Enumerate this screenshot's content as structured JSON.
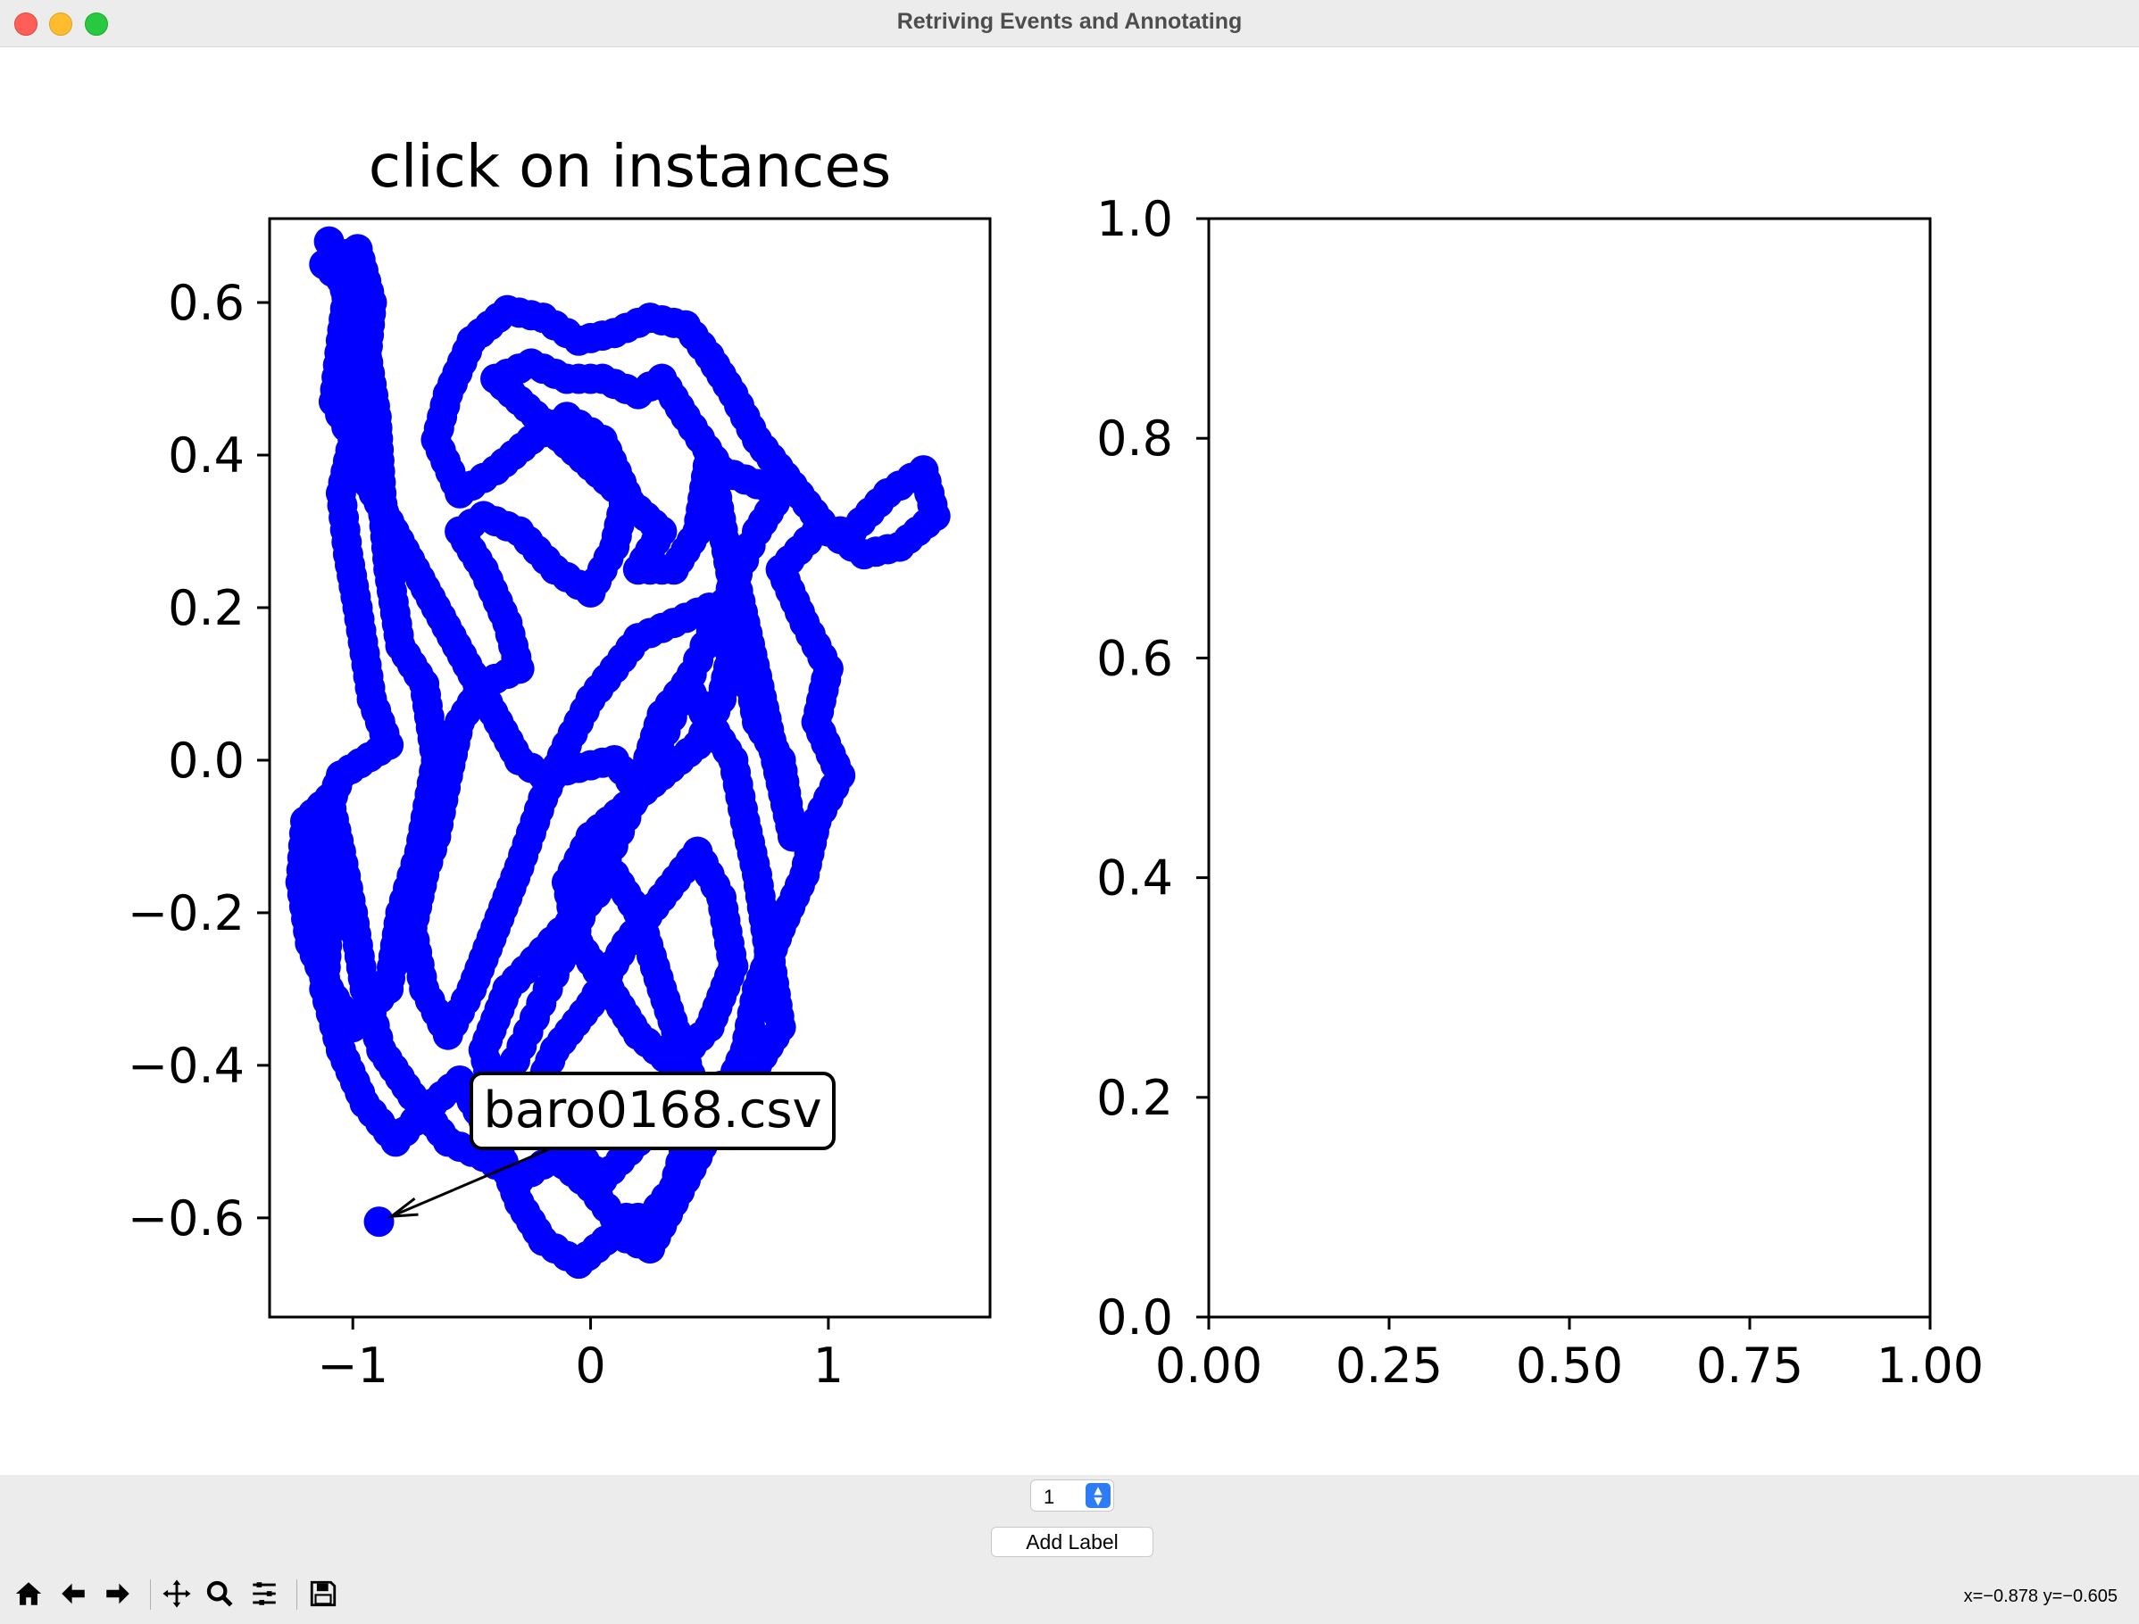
{
  "window": {
    "title": "Retriving Events and Annotating"
  },
  "chart_data": [
    {
      "type": "scatter",
      "title": "click on instances",
      "xlim": [
        -1.35,
        1.68
      ],
      "ylim": [
        -0.73,
        0.71
      ],
      "xticks": [
        "−1",
        "0",
        "1"
      ],
      "xtick_values": [
        -1,
        0,
        1
      ],
      "yticks": [
        "−0.6",
        "−0.4",
        "−0.2",
        "0.0",
        "0.2",
        "0.4",
        "0.6"
      ],
      "ytick_values": [
        -0.6,
        -0.4,
        -0.2,
        0.0,
        0.2,
        0.4,
        0.6
      ],
      "marker_color": "#0000ff",
      "trajectory": [
        [
          -1.1,
          0.68
        ],
        [
          -1.02,
          0.62
        ],
        [
          -1.05,
          0.55
        ],
        [
          -1.08,
          0.47
        ],
        [
          -1.0,
          0.42
        ],
        [
          -1.05,
          0.35
        ],
        [
          -1.02,
          0.27
        ],
        [
          -0.98,
          0.2
        ],
        [
          -0.95,
          0.14
        ],
        [
          -0.92,
          0.08
        ],
        [
          -0.85,
          0.02
        ],
        [
          -1.05,
          -0.02
        ],
        [
          -1.15,
          -0.1
        ],
        [
          -1.1,
          -0.2
        ],
        [
          -1.12,
          -0.3
        ],
        [
          -1.05,
          -0.38
        ],
        [
          -0.95,
          -0.45
        ],
        [
          -0.82,
          -0.5
        ],
        [
          -0.7,
          -0.46
        ],
        [
          -0.55,
          -0.42
        ],
        [
          -0.4,
          -0.5
        ],
        [
          -0.3,
          -0.58
        ],
        [
          -0.2,
          -0.63
        ],
        [
          -0.05,
          -0.66
        ],
        [
          0.1,
          -0.62
        ],
        [
          0.25,
          -0.64
        ],
        [
          0.35,
          -0.58
        ],
        [
          0.45,
          -0.52
        ],
        [
          0.55,
          -0.45
        ],
        [
          0.65,
          -0.38
        ],
        [
          0.7,
          -0.3
        ],
        [
          0.8,
          -0.22
        ],
        [
          0.9,
          -0.15
        ],
        [
          0.95,
          -0.08
        ],
        [
          1.05,
          -0.02
        ],
        [
          0.95,
          0.05
        ],
        [
          1.0,
          0.12
        ],
        [
          0.9,
          0.18
        ],
        [
          0.8,
          0.25
        ],
        [
          0.95,
          0.3
        ],
        [
          1.1,
          0.3
        ],
        [
          1.25,
          0.35
        ],
        [
          1.4,
          0.38
        ],
        [
          1.45,
          0.32
        ],
        [
          1.3,
          0.28
        ],
        [
          1.15,
          0.27
        ],
        [
          1.0,
          0.3
        ],
        [
          0.85,
          0.36
        ],
        [
          0.7,
          0.42
        ],
        [
          0.6,
          0.48
        ],
        [
          0.5,
          0.53
        ],
        [
          0.4,
          0.57
        ],
        [
          0.25,
          0.58
        ],
        [
          0.1,
          0.56
        ],
        [
          -0.05,
          0.55
        ],
        [
          -0.2,
          0.58
        ],
        [
          -0.35,
          0.59
        ],
        [
          -0.5,
          0.55
        ],
        [
          -0.6,
          0.48
        ],
        [
          -0.65,
          0.42
        ],
        [
          -0.55,
          0.35
        ],
        [
          -0.4,
          0.38
        ],
        [
          -0.25,
          0.42
        ],
        [
          -0.1,
          0.45
        ],
        [
          0.05,
          0.42
        ],
        [
          0.15,
          0.35
        ],
        [
          0.1,
          0.28
        ],
        [
          0.0,
          0.22
        ],
        [
          -0.15,
          0.25
        ],
        [
          -0.3,
          0.3
        ],
        [
          -0.45,
          0.32
        ],
        [
          -0.55,
          0.3
        ],
        [
          -0.45,
          0.25
        ],
        [
          -0.35,
          0.18
        ],
        [
          -0.3,
          0.12
        ],
        [
          -0.45,
          0.1
        ],
        [
          -0.55,
          0.05
        ],
        [
          -0.6,
          -0.02
        ],
        [
          -0.65,
          -0.1
        ],
        [
          -0.7,
          -0.15
        ],
        [
          -0.75,
          -0.22
        ],
        [
          -0.7,
          -0.3
        ],
        [
          -0.6,
          -0.36
        ],
        [
          -0.5,
          -0.3
        ],
        [
          -0.4,
          -0.22
        ],
        [
          -0.3,
          -0.14
        ],
        [
          -0.2,
          -0.05
        ],
        [
          -0.1,
          0.02
        ],
        [
          0.0,
          0.08
        ],
        [
          0.1,
          0.12
        ],
        [
          0.2,
          0.16
        ],
        [
          0.35,
          0.18
        ],
        [
          0.5,
          0.2
        ],
        [
          0.6,
          0.15
        ],
        [
          0.55,
          0.08
        ],
        [
          0.45,
          0.02
        ],
        [
          0.3,
          -0.02
        ],
        [
          0.15,
          -0.06
        ],
        [
          0.0,
          -0.1
        ],
        [
          -0.1,
          -0.16
        ],
        [
          -0.05,
          -0.24
        ],
        [
          0.08,
          -0.3
        ],
        [
          0.2,
          -0.36
        ],
        [
          0.35,
          -0.4
        ],
        [
          0.5,
          -0.35
        ],
        [
          0.6,
          -0.27
        ],
        [
          0.55,
          -0.18
        ],
        [
          0.45,
          -0.12
        ],
        [
          0.3,
          -0.18
        ],
        [
          0.15,
          -0.24
        ],
        [
          0.0,
          -0.32
        ],
        [
          -0.15,
          -0.38
        ],
        [
          -0.25,
          -0.45
        ],
        [
          -0.1,
          -0.5
        ],
        [
          0.05,
          -0.55
        ],
        [
          0.2,
          -0.5
        ],
        [
          0.3,
          -0.44
        ],
        [
          0.42,
          -0.48
        ],
        [
          0.35,
          -0.56
        ],
        [
          0.25,
          -0.6
        ],
        [
          0.1,
          -0.6
        ],
        [
          0.0,
          -0.56
        ],
        [
          -0.15,
          -0.52
        ],
        [
          -0.3,
          -0.55
        ],
        [
          -0.45,
          -0.52
        ],
        [
          -0.6,
          -0.5
        ],
        [
          -0.75,
          -0.44
        ],
        [
          -0.88,
          -0.38
        ],
        [
          -0.95,
          -0.3
        ],
        [
          -1.0,
          -0.2
        ],
        [
          -1.05,
          -0.12
        ],
        [
          -1.1,
          -0.05
        ],
        [
          -1.2,
          -0.08
        ],
        [
          -1.22,
          -0.16
        ],
        [
          -1.18,
          -0.24
        ],
        [
          -1.1,
          -0.3
        ],
        [
          -1.0,
          -0.35
        ],
        [
          -0.85,
          -0.3
        ],
        [
          -0.8,
          -0.2
        ],
        [
          -0.72,
          -0.12
        ],
        [
          -0.65,
          0.0
        ],
        [
          -0.7,
          0.1
        ],
        [
          -0.8,
          0.15
        ],
        [
          -0.85,
          0.25
        ],
        [
          -0.88,
          0.35
        ],
        [
          -0.9,
          0.45
        ],
        [
          -0.95,
          0.55
        ],
        [
          -1.05,
          0.63
        ],
        [
          -1.12,
          0.65
        ],
        [
          -0.98,
          0.67
        ],
        [
          -0.92,
          0.6
        ],
        [
          -0.95,
          0.5
        ],
        [
          -1.0,
          0.4
        ],
        [
          -0.3,
          0.0
        ],
        [
          -0.2,
          -0.02
        ],
        [
          0.1,
          0.0
        ],
        [
          0.2,
          -0.04
        ],
        [
          0.3,
          0.06
        ],
        [
          0.4,
          0.1
        ],
        [
          0.5,
          0.05
        ],
        [
          0.6,
          0.0
        ],
        [
          0.65,
          -0.08
        ],
        [
          0.7,
          -0.15
        ],
        [
          0.75,
          -0.25
        ],
        [
          0.8,
          -0.35
        ],
        [
          0.7,
          -0.4
        ],
        [
          0.6,
          -0.42
        ],
        [
          0.45,
          -0.44
        ],
        [
          0.3,
          -0.3
        ],
        [
          0.2,
          -0.2
        ],
        [
          0.1,
          -0.15
        ],
        [
          -0.05,
          -0.2
        ],
        [
          -0.2,
          -0.25
        ],
        [
          -0.35,
          -0.3
        ],
        [
          -0.45,
          -0.38
        ],
        [
          -0.4,
          -0.45
        ],
        [
          0.7,
          0.3
        ],
        [
          0.8,
          0.35
        ],
        [
          0.55,
          0.38
        ],
        [
          0.4,
          0.45
        ],
        [
          0.3,
          0.5
        ],
        [
          0.2,
          0.48
        ],
        [
          0.05,
          0.5
        ],
        [
          -0.1,
          0.5
        ],
        [
          -0.25,
          0.52
        ],
        [
          -0.4,
          0.5
        ],
        [
          0.3,
          0.3
        ],
        [
          0.2,
          0.25
        ],
        [
          0.35,
          0.25
        ],
        [
          0.45,
          0.3
        ],
        [
          0.5,
          0.4
        ],
        [
          0.7,
          0.05
        ],
        [
          0.8,
          0.0
        ],
        [
          0.85,
          -0.1
        ],
        [
          0.6,
          0.25
        ]
      ],
      "annotated_point": {
        "x": -0.89,
        "y": -0.605,
        "label": "baro0168.csv"
      }
    },
    {
      "type": "scatter",
      "xlim": [
        0.0,
        1.0
      ],
      "ylim": [
        0.0,
        1.0
      ],
      "xticks": [
        "0.00",
        "0.25",
        "0.50",
        "0.75",
        "1.00"
      ],
      "xtick_values": [
        0.0,
        0.25,
        0.5,
        0.75,
        1.0
      ],
      "yticks": [
        "0.0",
        "0.2",
        "0.4",
        "0.6",
        "0.8",
        "1.0"
      ],
      "ytick_values": [
        0.0,
        0.2,
        0.4,
        0.6,
        0.8,
        1.0
      ],
      "points": []
    }
  ],
  "controls": {
    "spinbox_value": "1",
    "add_label_button": "Add Label"
  },
  "toolbar": {
    "buttons": [
      "home-icon",
      "back-icon",
      "forward-icon",
      "pan-icon",
      "zoom-icon",
      "configure-subplots-icon",
      "save-icon"
    ],
    "status": "x=−0.878 y=−0.605"
  }
}
